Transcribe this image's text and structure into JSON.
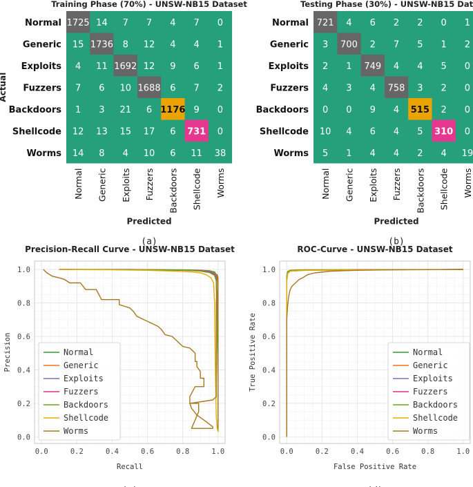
{
  "colors": {
    "cm_bg": "#26a07a",
    "cm_diag": "#666666",
    "cm_backdoors": "#eba300",
    "cm_shellcode": "#e5378f",
    "grid": "#e6e6e6",
    "axis": "#888888"
  },
  "chart_data": [
    {
      "type": "heatmap",
      "panel": "(a)",
      "title": "Training Phase (70%) - UNSW-NB15 Dataset",
      "xlabel": "Predicted",
      "ylabel": "Actual",
      "classes": [
        "Normal",
        "Generic",
        "Exploits",
        "Fuzzers",
        "Backdoors",
        "Shellcode",
        "Worms"
      ],
      "matrix": [
        [
          1725,
          14,
          7,
          7,
          4,
          7,
          0
        ],
        [
          15,
          1736,
          8,
          12,
          4,
          4,
          1
        ],
        [
          4,
          11,
          1692,
          12,
          9,
          6,
          1
        ],
        [
          7,
          6,
          10,
          1688,
          6,
          7,
          2
        ],
        [
          1,
          3,
          21,
          6,
          1176,
          9,
          0
        ],
        [
          12,
          13,
          15,
          17,
          6,
          731,
          0
        ],
        [
          14,
          8,
          4,
          10,
          6,
          11,
          38
        ]
      ]
    },
    {
      "type": "heatmap",
      "panel": "(b)",
      "title": "Testing Phase (30%) - UNSW-NB15 Dataset",
      "xlabel": "Predicted",
      "ylabel": "",
      "classes": [
        "Normal",
        "Generic",
        "Exploits",
        "Fuzzers",
        "Backdoors",
        "Shellcode",
        "Worms"
      ],
      "matrix": [
        [
          721,
          4,
          6,
          2,
          2,
          0,
          1
        ],
        [
          3,
          700,
          2,
          7,
          5,
          1,
          2
        ],
        [
          2,
          1,
          749,
          4,
          4,
          5,
          0
        ],
        [
          4,
          3,
          4,
          758,
          3,
          2,
          0
        ],
        [
          0,
          0,
          9,
          4,
          515,
          2,
          0
        ],
        [
          10,
          4,
          6,
          4,
          5,
          310,
          0
        ],
        [
          5,
          1,
          4,
          4,
          2,
          4,
          19
        ]
      ]
    },
    {
      "type": "line",
      "panel": "(c)",
      "title": "Precision-Recall Curve - UNSW-NB15 Dataset",
      "xlabel": "Recall",
      "ylabel": "Precision",
      "xlim": [
        -0.04,
        1.04
      ],
      "ylim": [
        -0.04,
        1.05
      ],
      "xticks": [
        "0.0",
        "0.2",
        "0.4",
        "0.6",
        "0.8",
        "1.0"
      ],
      "yticks": [
        "0.0",
        "0.2",
        "0.4",
        "0.6",
        "0.8",
        "1.0"
      ],
      "legend_position": "bottom-left",
      "series": [
        {
          "name": "Normal",
          "color": "#2ca02c",
          "points": [
            [
              0.1,
              1.0
            ],
            [
              0.5,
              1.0
            ],
            [
              0.8,
              0.998
            ],
            [
              0.9,
              0.996
            ],
            [
              0.95,
              0.993
            ],
            [
              0.98,
              0.985
            ],
            [
              0.99,
              0.97
            ],
            [
              0.995,
              0.85
            ],
            [
              1.0,
              0.5
            ],
            [
              1.0,
              0.03
            ]
          ]
        },
        {
          "name": "Generic",
          "color": "#f07021",
          "points": [
            [
              0.1,
              1.0
            ],
            [
              0.5,
              1.0
            ],
            [
              0.8,
              0.997
            ],
            [
              0.9,
              0.995
            ],
            [
              0.95,
              0.99
            ],
            [
              0.98,
              0.98
            ],
            [
              0.99,
              0.96
            ],
            [
              0.995,
              0.8
            ],
            [
              1.0,
              0.5
            ],
            [
              1.0,
              0.03
            ]
          ]
        },
        {
          "name": "Exploits",
          "color": "#7570b3",
          "points": [
            [
              0.1,
              1.0
            ],
            [
              0.5,
              0.999
            ],
            [
              0.8,
              0.996
            ],
            [
              0.9,
              0.993
            ],
            [
              0.95,
              0.988
            ],
            [
              0.98,
              0.975
            ],
            [
              0.99,
              0.95
            ],
            [
              0.995,
              0.75
            ],
            [
              1.0,
              0.4
            ],
            [
              1.0,
              0.03
            ]
          ]
        },
        {
          "name": "Fuzzers",
          "color": "#e7298a",
          "points": [
            [
              0.1,
              1.0
            ],
            [
              0.5,
              0.999
            ],
            [
              0.8,
              0.995
            ],
            [
              0.9,
              0.992
            ],
            [
              0.95,
              0.985
            ],
            [
              0.98,
              0.97
            ],
            [
              0.99,
              0.94
            ],
            [
              0.995,
              0.7
            ],
            [
              1.0,
              0.35
            ],
            [
              1.0,
              0.03
            ]
          ]
        },
        {
          "name": "Backdoors",
          "color": "#66a61e",
          "points": [
            [
              0.1,
              1.0
            ],
            [
              0.5,
              0.999
            ],
            [
              0.8,
              0.996
            ],
            [
              0.9,
              0.99
            ],
            [
              0.95,
              0.982
            ],
            [
              0.98,
              0.965
            ],
            [
              0.99,
              0.93
            ],
            [
              0.995,
              0.65
            ],
            [
              1.0,
              0.3
            ],
            [
              1.0,
              0.03
            ]
          ]
        },
        {
          "name": "Shellcode",
          "color": "#e6ab02",
          "points": [
            [
              0.1,
              1.0
            ],
            [
              0.4,
              0.998
            ],
            [
              0.6,
              0.995
            ],
            [
              0.75,
              0.99
            ],
            [
              0.85,
              0.985
            ],
            [
              0.9,
              0.98
            ],
            [
              0.93,
              0.97
            ],
            [
              0.96,
              0.95
            ],
            [
              0.975,
              0.92
            ],
            [
              0.98,
              0.8
            ],
            [
              0.985,
              0.4
            ],
            [
              0.99,
              0.12
            ],
            [
              0.995,
              0.05
            ],
            [
              1.0,
              0.03
            ]
          ]
        },
        {
          "name": "Worms",
          "color": "#a6761d",
          "points": [
            [
              0.01,
              1.0
            ],
            [
              0.03,
              0.98
            ],
            [
              0.06,
              0.96
            ],
            [
              0.1,
              0.95
            ],
            [
              0.13,
              0.94
            ],
            [
              0.16,
              0.92
            ],
            [
              0.22,
              0.92
            ],
            [
              0.25,
              0.88
            ],
            [
              0.31,
              0.88
            ],
            [
              0.34,
              0.82
            ],
            [
              0.44,
              0.82
            ],
            [
              0.44,
              0.79
            ],
            [
              0.5,
              0.77
            ],
            [
              0.52,
              0.75
            ],
            [
              0.54,
              0.72
            ],
            [
              0.58,
              0.7
            ],
            [
              0.62,
              0.68
            ],
            [
              0.66,
              0.66
            ],
            [
              0.68,
              0.64
            ],
            [
              0.7,
              0.61
            ],
            [
              0.74,
              0.6
            ],
            [
              0.77,
              0.57
            ],
            [
              0.8,
              0.54
            ],
            [
              0.84,
              0.53
            ],
            [
              0.87,
              0.5
            ],
            [
              0.87,
              0.45
            ],
            [
              0.88,
              0.45
            ],
            [
              0.88,
              0.42
            ],
            [
              0.9,
              0.39
            ],
            [
              0.9,
              0.35
            ],
            [
              0.92,
              0.35
            ],
            [
              0.92,
              0.3
            ],
            [
              0.87,
              0.3
            ],
            [
              0.84,
              0.24
            ],
            [
              0.84,
              0.2
            ],
            [
              0.89,
              0.2
            ],
            [
              0.89,
              0.15
            ],
            [
              0.85,
              0.05
            ],
            [
              0.93,
              0.05
            ],
            [
              0.97,
              0.05
            ],
            [
              0.97,
              0.06
            ],
            [
              0.92,
              0.1
            ],
            [
              0.88,
              0.13
            ],
            [
              0.85,
              0.17
            ],
            [
              0.84,
              0.2
            ],
            [
              0.97,
              0.22
            ],
            [
              0.98,
              0.23
            ],
            [
              0.99,
              0.24
            ],
            [
              0.99,
              0.8
            ],
            [
              0.995,
              0.97
            ],
            [
              1.0,
              0.95
            ],
            [
              1.0,
              0.05
            ]
          ]
        }
      ],
      "annotation": "(c)"
    },
    {
      "type": "line",
      "panel": "(d)",
      "title": "ROC-Curve - UNSW-NB15 Dataset",
      "xlabel": "False Positive Rate",
      "ylabel": "True Positive Rate",
      "xlim": [
        -0.04,
        1.04
      ],
      "ylim": [
        -0.04,
        1.05
      ],
      "xticks": [
        "0.0",
        "0.2",
        "0.4",
        "0.6",
        "0.8",
        "1.0"
      ],
      "yticks": [
        "0.0",
        "0.2",
        "0.4",
        "0.6",
        "0.8",
        "1.0"
      ],
      "legend_position": "bottom-right",
      "series": [
        {
          "name": "Normal",
          "color": "#2ca02c",
          "points": [
            [
              0,
              0
            ],
            [
              0.0,
              0.95
            ],
            [
              0.005,
              0.985
            ],
            [
              0.02,
              0.995
            ],
            [
              0.1,
              0.998
            ],
            [
              0.4,
              0.999
            ],
            [
              1,
              1
            ]
          ]
        },
        {
          "name": "Generic",
          "color": "#f07021",
          "points": [
            [
              0,
              0
            ],
            [
              0.0,
              0.96
            ],
            [
              0.005,
              0.988
            ],
            [
              0.02,
              0.996
            ],
            [
              0.1,
              0.998
            ],
            [
              0.4,
              0.999
            ],
            [
              1,
              1
            ]
          ]
        },
        {
          "name": "Exploits",
          "color": "#7570b3",
          "points": [
            [
              0,
              0
            ],
            [
              0.0,
              0.93
            ],
            [
              0.005,
              0.98
            ],
            [
              0.02,
              0.99
            ],
            [
              0.1,
              0.995
            ],
            [
              0.4,
              0.998
            ],
            [
              1,
              1
            ]
          ]
        },
        {
          "name": "Fuzzers",
          "color": "#e7298a",
          "points": [
            [
              0,
              0
            ],
            [
              0.0,
              0.94
            ],
            [
              0.005,
              0.982
            ],
            [
              0.02,
              0.992
            ],
            [
              0.1,
              0.996
            ],
            [
              0.4,
              0.998
            ],
            [
              1,
              1
            ]
          ]
        },
        {
          "name": "Backdoors",
          "color": "#66a61e",
          "points": [
            [
              0,
              0
            ],
            [
              0.0,
              0.95
            ],
            [
              0.005,
              0.985
            ],
            [
              0.02,
              0.994
            ],
            [
              0.1,
              0.997
            ],
            [
              0.4,
              0.999
            ],
            [
              1,
              1
            ]
          ]
        },
        {
          "name": "Shellcode",
          "color": "#e6ab02",
          "points": [
            [
              0,
              0
            ],
            [
              0.0,
              0.92
            ],
            [
              0.005,
              0.975
            ],
            [
              0.02,
              0.99
            ],
            [
              0.1,
              0.995
            ],
            [
              0.4,
              0.998
            ],
            [
              1,
              1
            ]
          ]
        },
        {
          "name": "Worms",
          "color": "#a6761d",
          "points": [
            [
              0,
              0
            ],
            [
              0.0,
              0.7
            ],
            [
              0.005,
              0.78
            ],
            [
              0.01,
              0.83
            ],
            [
              0.015,
              0.86
            ],
            [
              0.02,
              0.88
            ],
            [
              0.03,
              0.9
            ],
            [
              0.04,
              0.91
            ],
            [
              0.05,
              0.92
            ],
            [
              0.07,
              0.94
            ],
            [
              0.09,
              0.95
            ],
            [
              0.12,
              0.97
            ],
            [
              0.16,
              0.98
            ],
            [
              0.25,
              0.99
            ],
            [
              0.4,
              0.995
            ],
            [
              0.6,
              0.998
            ],
            [
              1,
              1
            ]
          ]
        }
      ],
      "annotation": "(d)"
    }
  ]
}
